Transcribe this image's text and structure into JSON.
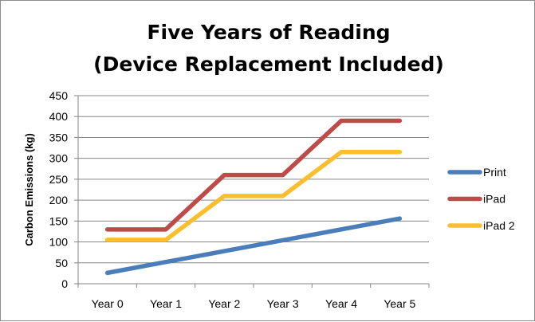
{
  "chart_data": {
    "type": "line",
    "title": [
      "Five Years of Reading",
      "(Device Replacement Included)"
    ],
    "xlabel": "",
    "ylabel": "Carbon Emissions (kg)",
    "categories": [
      "Year 0",
      "Year 1",
      "Year 2",
      "Year 3",
      "Year 4",
      "Year 5"
    ],
    "ylim": [
      0,
      450
    ],
    "yticks": [
      0,
      50,
      100,
      150,
      200,
      250,
      300,
      350,
      400,
      450
    ],
    "grid": true,
    "legend_position": "right",
    "series": [
      {
        "name": "Print",
        "color": "#4a7ebb",
        "values": [
          26,
          52,
          78,
          104,
          130,
          156
        ]
      },
      {
        "name": "iPad",
        "color": "#be4b48",
        "values": [
          130,
          130,
          260,
          260,
          390,
          390
        ]
      },
      {
        "name": "iPad 2",
        "color": "#fbbf2e",
        "values": [
          105,
          105,
          210,
          210,
          315,
          315
        ]
      }
    ]
  }
}
